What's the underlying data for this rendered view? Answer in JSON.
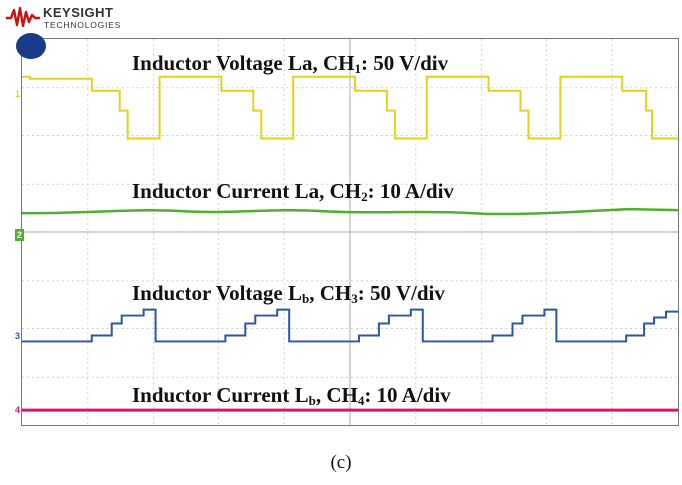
{
  "brand": {
    "name": "KEYSIGHT",
    "sub": "TECHNOLOGIES",
    "color": "#cc1111"
  },
  "labels": {
    "ch1": {
      "pre": "Inductor Voltage La, CH",
      "sub": "1",
      "post": ": 50 V/div"
    },
    "ch2": {
      "pre": "Inductor Current La, CH",
      "sub": "2",
      "post": ": 10 A/div"
    },
    "ch3": {
      "pre": "Inductor Voltage L",
      "sub1": "b",
      "mid": ", CH",
      "sub2": "3",
      "post": ": 50 V/div"
    },
    "ch4": {
      "pre": "Inductor Current L",
      "sub1": "b",
      "mid": ", CH",
      "sub2": "4",
      "post": ": 10 A/div"
    }
  },
  "markers": {
    "ch1": "1",
    "ch2": "2",
    "ch3": "3",
    "ch4": "4"
  },
  "colors": {
    "ch1": "#e3d21a",
    "ch2": "#4fae2c",
    "ch3": "#2a55a8",
    "ch4": "#d0186e",
    "trigger": "#1a3b88",
    "grid": "#cccccc"
  },
  "caption": "(c)"
}
